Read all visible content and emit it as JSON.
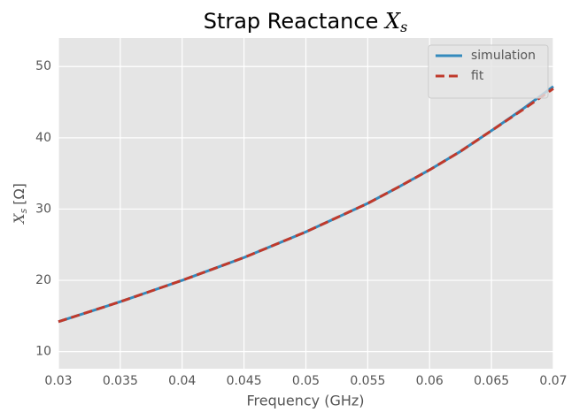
{
  "chart_data": {
    "type": "line",
    "title": {
      "text": "Strap Reactance",
      "symbol": "X",
      "subscript": "s"
    },
    "xlabel": "Frequency (GHz)",
    "ylabel": {
      "symbol": "X",
      "subscript": "s",
      "unit": "[Ω]"
    },
    "x": [
      0.03,
      0.0325,
      0.035,
      0.0375,
      0.04,
      0.0425,
      0.045,
      0.0475,
      0.05,
      0.0525,
      0.055,
      0.0575,
      0.06,
      0.0625,
      0.065,
      0.0675,
      0.07
    ],
    "series": [
      {
        "name": "simulation",
        "color": "#348abd",
        "dash": false,
        "values": [
          14.2,
          15.6,
          17.0,
          18.5,
          20.0,
          21.6,
          23.2,
          25.0,
          26.8,
          28.8,
          30.8,
          33.1,
          35.5,
          38.1,
          41.0,
          44.0,
          47.2
        ]
      },
      {
        "name": "fit",
        "color": "#c0392b",
        "dash": true,
        "values": [
          14.2,
          15.6,
          17.0,
          18.5,
          20.0,
          21.6,
          23.2,
          25.0,
          26.8,
          28.8,
          30.8,
          33.1,
          35.5,
          38.1,
          41.0,
          43.9,
          46.9
        ]
      }
    ],
    "xlim": [
      0.03,
      0.07
    ],
    "xticks": [
      0.03,
      0.035,
      0.04,
      0.045,
      0.05,
      0.055,
      0.06,
      0.065,
      0.07
    ],
    "ylim": [
      7.6,
      54.0
    ],
    "yticks": [
      10,
      20,
      30,
      40,
      50
    ],
    "grid": true,
    "legend": "upper-right"
  }
}
